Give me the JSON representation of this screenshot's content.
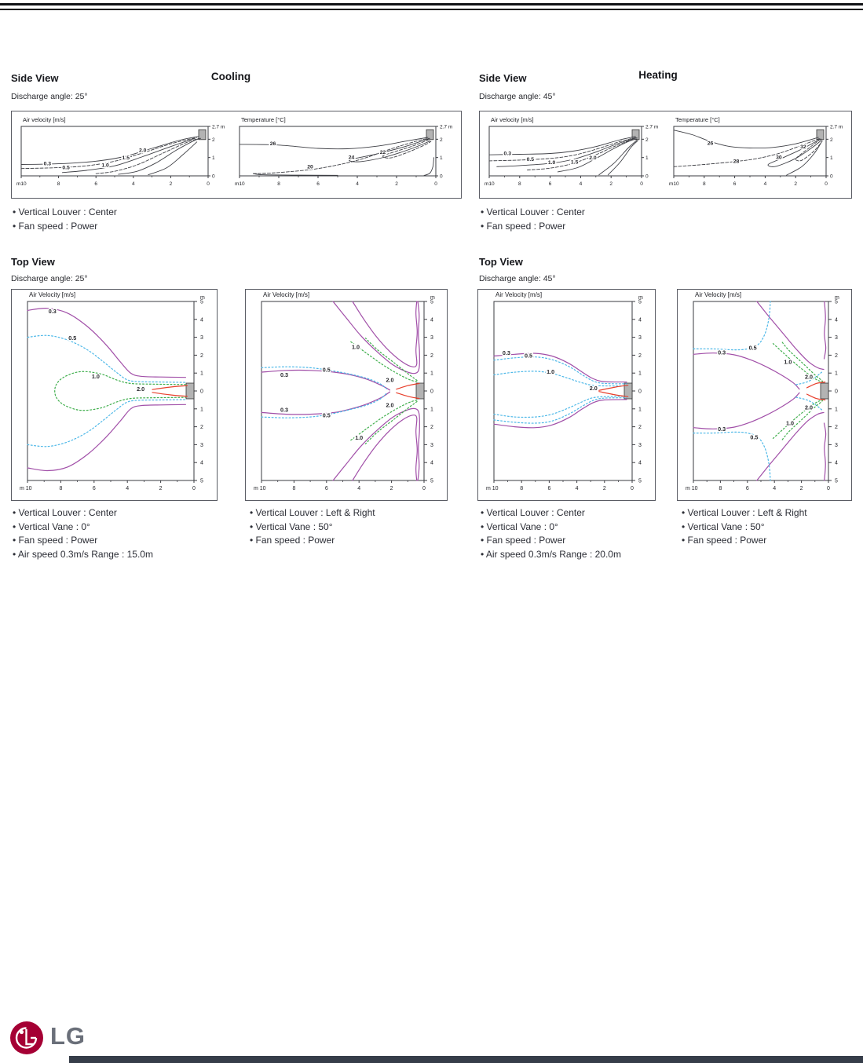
{
  "modes": [
    {
      "id": "cooling",
      "title": "Cooling",
      "side_heading": "Side View",
      "side_discharge": "Discharge angle: 25°",
      "side_notes": [
        "Vertical Louver : Center",
        "Fan speed : Power"
      ],
      "top_heading": "Top View",
      "top_discharge": "Discharge angle: 25°"
    },
    {
      "id": "heating",
      "title": "Heating",
      "side_heading": "Side View",
      "side_discharge": "Discharge angle: 45°",
      "side_notes": [
        "Vertical Louver : Center",
        "Fan speed : Power"
      ],
      "top_heading": "Top View",
      "top_discharge": "Discharge angle: 45°"
    }
  ],
  "top_captions": [
    {
      "items": [
        "Vertical Louver : Center",
        "Vertical Vane : 0°",
        "Fan speed : Power",
        "Air speed 0.3m/s Range : 15.0m"
      ]
    },
    {
      "items": [
        "Vertical Louver : Left & Right",
        "Vertical Vane : 50°",
        "Fan speed : Power"
      ]
    },
    {
      "items": [
        "Vertical Louver : Center",
        "Vertical Vane : 0°",
        "Fan speed : Power",
        "Air speed 0.3m/s Range : 20.0m"
      ]
    },
    {
      "items": [
        "Vertical Louver : Left & Right",
        "Vertical Vane : 50°",
        "Fan speed : Power"
      ]
    }
  ],
  "footer": {
    "brand": "LG"
  },
  "colors": {
    "purple": "#a14fa8",
    "cyan": "#4db8e8",
    "green": "#3fae4c",
    "red": "#e8402d",
    "line": "#3f4046",
    "unit": "#b3b3b3",
    "frame": "#3a3b40"
  },
  "chart_data": [
    {
      "id": "sv-cool-vel",
      "type": "contour",
      "view": "side",
      "title": "Air velocity [m/s]",
      "x_ticks": [
        "m10",
        "8",
        "6",
        "4",
        "2",
        "0"
      ],
      "y_ticks": [
        "2.7 m",
        "2",
        "1",
        "0"
      ],
      "x_range_m": [
        10,
        0
      ],
      "y_range_m": [
        0,
        2.7
      ],
      "levels": [
        {
          "value": "0.3",
          "color": "line",
          "style": "solid"
        },
        {
          "value": "0.5",
          "color": "line",
          "style": "dashed"
        },
        {
          "value": "1.0",
          "color": "line",
          "style": "solid"
        },
        {
          "value": "1.5",
          "color": "line",
          "style": "dashed"
        },
        {
          "value": "2.0",
          "color": "line",
          "style": "solid"
        }
      ]
    },
    {
      "id": "sv-cool-temp",
      "type": "contour",
      "view": "side",
      "title": "Temperature [°C]",
      "x_ticks": [
        "m10",
        "8",
        "6",
        "4",
        "2",
        "0"
      ],
      "y_ticks": [
        "2.7 m",
        "2",
        "1",
        "0"
      ],
      "x_range_m": [
        10,
        0
      ],
      "y_range_m": [
        0,
        2.7
      ],
      "levels": [
        {
          "value": "26",
          "color": "line",
          "style": "solid"
        },
        {
          "value": "24",
          "color": "line",
          "style": "solid"
        },
        {
          "value": "22",
          "color": "line",
          "style": "dashed"
        },
        {
          "value": "20",
          "color": "line",
          "style": "dashed"
        }
      ]
    },
    {
      "id": "sv-heat-vel",
      "type": "contour",
      "view": "side",
      "title": "Air velocity [m/s]",
      "x_ticks": [
        "m10",
        "8",
        "6",
        "4",
        "2",
        "0"
      ],
      "y_ticks": [
        "2.7 m",
        "2",
        "1",
        "0"
      ],
      "x_range_m": [
        10,
        0
      ],
      "y_range_m": [
        0,
        2.7
      ],
      "levels": [
        {
          "value": "0.3",
          "color": "line",
          "style": "solid"
        },
        {
          "value": "0.5",
          "color": "line",
          "style": "dashed"
        },
        {
          "value": "1.0",
          "color": "line",
          "style": "solid"
        },
        {
          "value": "1.5",
          "color": "line",
          "style": "dashed"
        },
        {
          "value": "2.0",
          "color": "line",
          "style": "solid"
        }
      ]
    },
    {
      "id": "sv-heat-temp",
      "type": "contour",
      "view": "side",
      "title": "Temperature [°C]",
      "x_ticks": [
        "m10",
        "8",
        "6",
        "4",
        "2",
        "0"
      ],
      "y_ticks": [
        "2.7 m",
        "2",
        "1",
        "0"
      ],
      "x_range_m": [
        10,
        0
      ],
      "y_range_m": [
        0,
        2.7
      ],
      "levels": [
        {
          "value": "26",
          "color": "line",
          "style": "solid"
        },
        {
          "value": "28",
          "color": "line",
          "style": "dashed"
        },
        {
          "value": "30",
          "color": "line",
          "style": "solid"
        },
        {
          "value": "32",
          "color": "line",
          "style": "dashed"
        }
      ]
    },
    {
      "id": "tv-cool-center",
      "type": "contour",
      "view": "top",
      "title": "Air Velocity [m/s]",
      "x_ticks": [
        "m 10",
        "8",
        "6",
        "4",
        "2",
        "0"
      ],
      "y_ticks": [
        "m",
        "5",
        "4",
        "3",
        "2",
        "1",
        "0",
        "1",
        "2",
        "3",
        "4",
        "5"
      ],
      "x_range_m": [
        10,
        0
      ],
      "y_range_m": [
        -5,
        5
      ],
      "levels": [
        {
          "value": "0.3",
          "color": "purple",
          "style": "solid"
        },
        {
          "value": "0.5",
          "color": "cyan",
          "style": "dotted"
        },
        {
          "value": "1.0",
          "color": "green",
          "style": "dotted"
        },
        {
          "value": "2.0",
          "color": "red",
          "style": "solid"
        }
      ]
    },
    {
      "id": "tv-cool-lr",
      "type": "contour",
      "view": "top",
      "title": "Air Velocity [m/s]",
      "x_ticks": [
        "m 10",
        "8",
        "6",
        "4",
        "2",
        "0"
      ],
      "y_ticks": [
        "m",
        "5",
        "4",
        "3",
        "2",
        "1",
        "0",
        "1",
        "2",
        "3",
        "4",
        "5"
      ],
      "x_range_m": [
        10,
        0
      ],
      "y_range_m": [
        -5,
        5
      ],
      "levels": [
        {
          "value": "0.3",
          "color": "purple",
          "style": "solid"
        },
        {
          "value": "0.5",
          "color": "cyan",
          "style": "dotted"
        },
        {
          "value": "1.0",
          "color": "green",
          "style": "dotted"
        },
        {
          "value": "2.0",
          "color": "red",
          "style": "solid"
        }
      ]
    },
    {
      "id": "tv-heat-center",
      "type": "contour",
      "view": "top",
      "title": "Air Velocity [m/s]",
      "x_ticks": [
        "m 10",
        "8",
        "6",
        "4",
        "2",
        "0"
      ],
      "y_ticks": [
        "m",
        "5",
        "4",
        "3",
        "2",
        "1",
        "0",
        "1",
        "2",
        "3",
        "4",
        "5"
      ],
      "x_range_m": [
        10,
        0
      ],
      "y_range_m": [
        -5,
        5
      ],
      "levels": [
        {
          "value": "0.3",
          "color": "purple",
          "style": "solid"
        },
        {
          "value": "0.5",
          "color": "cyan",
          "style": "dotted"
        },
        {
          "value": "1.0",
          "color": "cyan",
          "style": "dotted"
        },
        {
          "value": "2.0",
          "color": "red",
          "style": "solid"
        }
      ]
    },
    {
      "id": "tv-heat-lr",
      "type": "contour",
      "view": "top",
      "title": "Air Velocity [m/s]",
      "x_ticks": [
        "m 10",
        "8",
        "6",
        "4",
        "2",
        "0"
      ],
      "y_ticks": [
        "m",
        "5",
        "4",
        "3",
        "2",
        "1",
        "0",
        "1",
        "2",
        "3",
        "4",
        "5"
      ],
      "x_range_m": [
        10,
        0
      ],
      "y_range_m": [
        -5,
        5
      ],
      "levels": [
        {
          "value": "0.3",
          "color": "purple",
          "style": "solid"
        },
        {
          "value": "0.5",
          "color": "cyan",
          "style": "dotted"
        },
        {
          "value": "1.0",
          "color": "green",
          "style": "dotted"
        },
        {
          "value": "2.0",
          "color": "red",
          "style": "solid"
        }
      ]
    }
  ]
}
